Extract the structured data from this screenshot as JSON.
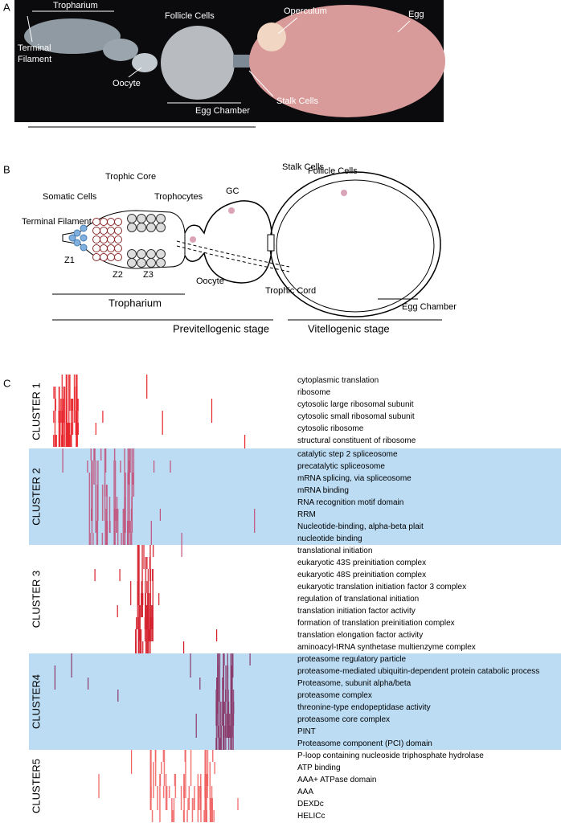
{
  "panel_a": {
    "label": "A",
    "tropharium": "Tropharium",
    "terminal_filament_1": "Terminal",
    "terminal_filament_2": "Filament",
    "follicle_cells": "Follicle Cells",
    "operculum": "Operculum",
    "egg": "Egg",
    "oocyte": "Oocyte",
    "stalk_cells": "Stalk Cells",
    "egg_chamber": "Egg Chamber"
  },
  "panel_b": {
    "label": "B",
    "trophic_core": "Trophic Core",
    "stalk_cells": "Stalk Cells",
    "follicle_cells": "Follicle Cells",
    "somatic_cells": "Somatic Cells",
    "trophocytes": "Trophocytes",
    "gc": "GC",
    "terminal_filament": "Terminal Filament",
    "z1": "Z1",
    "z2": "Z2",
    "z3": "Z3",
    "oocyte": "Oocyte",
    "trophic_cord": "Trophic Cord",
    "tropharium": "Tropharium",
    "egg_chamber": "Egg Chamber",
    "previtellogenic": "Previtellogenic stage",
    "vitellogenic": "Vitellogenic stage"
  },
  "panel_c": {
    "label": "C",
    "clusters": [
      {
        "name": "CLUSTER 1",
        "terms": [
          "cytoplasmic translation",
          "ribosome",
          "cytosolic large ribosomal subunit",
          "cytosolic small ribosomal subunit",
          "cytosolic ribosome",
          "structural constituent of ribosome"
        ]
      },
      {
        "name": "CLUSTER 2",
        "terms": [
          "catalytic step 2 spliceosome",
          "precatalytic spliceosome",
          "mRNA splicing, via spliceosome",
          "mRNA binding",
          "RNA recognition motif domain",
          "RRM",
          "Nucleotide-binding, alpha-beta plait",
          "nucleotide binding"
        ]
      },
      {
        "name": "CLUSTER 3",
        "terms": [
          "translational initiation",
          "eukaryotic 43S preinitiation complex",
          "eukaryotic 48S preinitiation complex",
          "eukaryotic translation initiation factor 3 complex",
          "regulation of translational initiation",
          "translation initiation factor activity",
          "formation of translation preinitiation complex",
          "translation elongation factor activity",
          "aminoacyl-tRNA synthetase multienzyme complex"
        ]
      },
      {
        "name": "CLUSTER4",
        "terms": [
          "proteasome regulatory particle",
          "proteasome-mediated ubiquitin-dependent protein catabolic process",
          "Proteasome, subunit alpha/beta",
          "proteasome complex",
          "threonine-type endopeptidase activity",
          "proteasome core complex",
          "PINT",
          "Proteasome component (PCI) domain"
        ]
      },
      {
        "name": "CLUSTER5",
        "terms": [
          "P-loop containing nucleoside triphosphate hydrolase",
          "ATP binding",
          "AAA+ ATPase domain",
          "AAA",
          "DEXDc",
          "HELICc"
        ]
      }
    ]
  }
}
